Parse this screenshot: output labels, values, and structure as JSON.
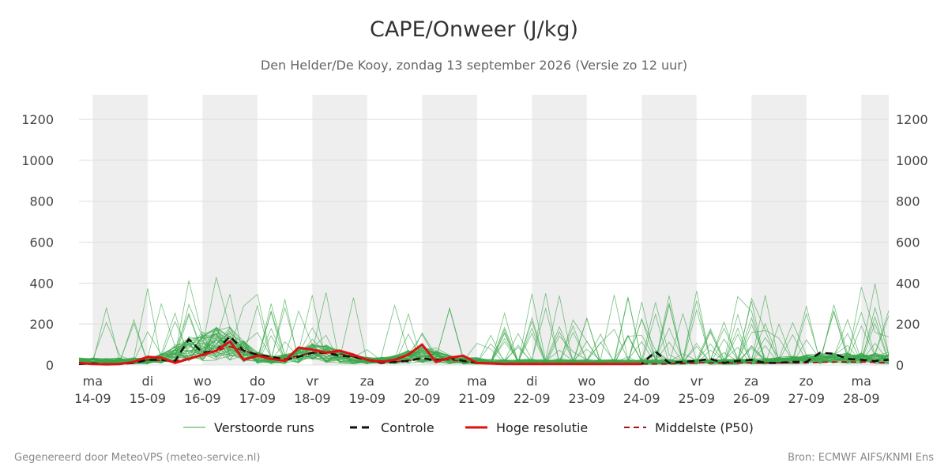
{
  "header": {
    "title": "CAPE/Onweer (J/kg)",
    "subtitle": "Den Helder/De Kooy, zondag 13 september 2026 (Versie zo 12 uur)"
  },
  "footer": {
    "left": "Gegenereerd door MeteoVPS (meteo-service.nl)",
    "right": "Bron: ECMWF AIFS/KNMI Ens"
  },
  "colors": {
    "perturbed": "#3aa64a",
    "control": "#111111",
    "highres": "#dd1111",
    "median": "#aa1111",
    "weekend_band": "#eeeeee",
    "grid": "#dddddd"
  },
  "chart_data": {
    "type": "line",
    "title": "CAPE/Onweer (J/kg)",
    "x_unit": "days from 14-09 00:00",
    "xlim": [
      -0.25,
      14.5
    ],
    "ylim": [
      0,
      1320
    ],
    "yticks": [
      0,
      200,
      400,
      600,
      800,
      1000,
      1200
    ],
    "grid": true,
    "legend_position": "bottom",
    "x_tick_labels": [
      {
        "day": "ma",
        "date": "14-09"
      },
      {
        "day": "di",
        "date": "15-09"
      },
      {
        "day": "wo",
        "date": "16-09"
      },
      {
        "day": "do",
        "date": "17-09"
      },
      {
        "day": "vr",
        "date": "18-09"
      },
      {
        "day": "za",
        "date": "19-09"
      },
      {
        "day": "zo",
        "date": "20-09"
      },
      {
        "day": "ma",
        "date": "21-09"
      },
      {
        "day": "di",
        "date": "22-09"
      },
      {
        "day": "wo",
        "date": "23-09"
      },
      {
        "day": "do",
        "date": "24-09"
      },
      {
        "day": "vr",
        "date": "25-09"
      },
      {
        "day": "za",
        "date": "26-09"
      },
      {
        "day": "zo",
        "date": "27-09"
      },
      {
        "day": "ma",
        "date": "28-09"
      }
    ],
    "shaded_bands": [
      [
        0,
        1
      ],
      [
        2,
        3
      ],
      [
        4,
        5
      ],
      [
        6,
        7
      ],
      [
        8,
        9
      ],
      [
        10,
        11
      ],
      [
        12,
        13
      ],
      [
        14,
        14.5
      ]
    ],
    "legend": [
      {
        "key": "perturbed",
        "label": "Verstoorde runs",
        "style": "thin"
      },
      {
        "key": "control",
        "label": "Controle",
        "style": "dashed"
      },
      {
        "key": "highres",
        "label": "Hoge resolutie",
        "style": "solid"
      },
      {
        "key": "median",
        "label": "Middelste (P50)",
        "style": "dashed"
      }
    ],
    "series": [
      {
        "key": "control",
        "name": "Controle",
        "x": [
          -0.25,
          0,
          0.25,
          0.5,
          0.75,
          1,
          1.25,
          1.5,
          1.75,
          2,
          2.25,
          2.5,
          2.75,
          3,
          3.25,
          3.5,
          3.75,
          4,
          4.25,
          4.5,
          4.75,
          5,
          5.25,
          5.5,
          5.75,
          6,
          6.25,
          6.5,
          6.75,
          7,
          7.5,
          8,
          8.5,
          9,
          9.5,
          10,
          10.25,
          10.5,
          10.75,
          11,
          11.25,
          11.5,
          11.75,
          12,
          12.25,
          12.5,
          12.75,
          13,
          13.25,
          13.5,
          13.75,
          14,
          14.25,
          14.5
        ],
        "y": [
          5,
          8,
          3,
          5,
          10,
          25,
          25,
          20,
          125,
          60,
          70,
          140,
          70,
          50,
          40,
          25,
          40,
          60,
          60,
          45,
          40,
          25,
          10,
          15,
          20,
          35,
          20,
          35,
          20,
          10,
          5,
          5,
          5,
          5,
          5,
          5,
          65,
          10,
          15,
          20,
          30,
          10,
          20,
          25,
          10,
          10,
          15,
          15,
          60,
          55,
          30,
          25,
          20,
          25
        ]
      },
      {
        "key": "highres",
        "name": "Hoge resolutie",
        "x": [
          -0.25,
          0,
          0.25,
          0.5,
          0.75,
          1,
          1.25,
          1.5,
          1.75,
          2,
          2.25,
          2.5,
          2.75,
          3,
          3.25,
          3.5,
          3.75,
          4,
          4.25,
          4.5,
          4.75,
          5,
          5.25,
          5.5,
          5.75,
          6,
          6.25,
          6.5,
          6.75,
          7,
          7.5,
          8,
          8.5,
          9,
          9.5,
          10
        ],
        "y": [
          10,
          5,
          3,
          5,
          15,
          40,
          35,
          10,
          30,
          50,
          70,
          115,
          25,
          45,
          30,
          20,
          85,
          75,
          60,
          70,
          50,
          25,
          15,
          25,
          50,
          100,
          15,
          35,
          45,
          10,
          5,
          5,
          5,
          5,
          5,
          5
        ]
      },
      {
        "key": "median",
        "name": "Middelste (P50)",
        "x": [
          -0.25,
          0,
          0.5,
          1,
          1.5,
          2,
          2.5,
          3,
          3.5,
          4,
          4.5,
          5,
          5.5,
          6,
          6.5,
          7,
          7.5,
          8,
          8.5,
          9,
          9.5,
          10,
          10.5,
          11,
          11.5,
          12,
          12.5,
          13,
          13.5,
          14,
          14.5
        ],
        "y": [
          5,
          5,
          5,
          25,
          20,
          45,
          90,
          50,
          30,
          60,
          55,
          25,
          15,
          30,
          25,
          10,
          5,
          5,
          5,
          5,
          5,
          5,
          5,
          10,
          10,
          10,
          10,
          10,
          15,
          15,
          10
        ]
      }
    ]
  }
}
